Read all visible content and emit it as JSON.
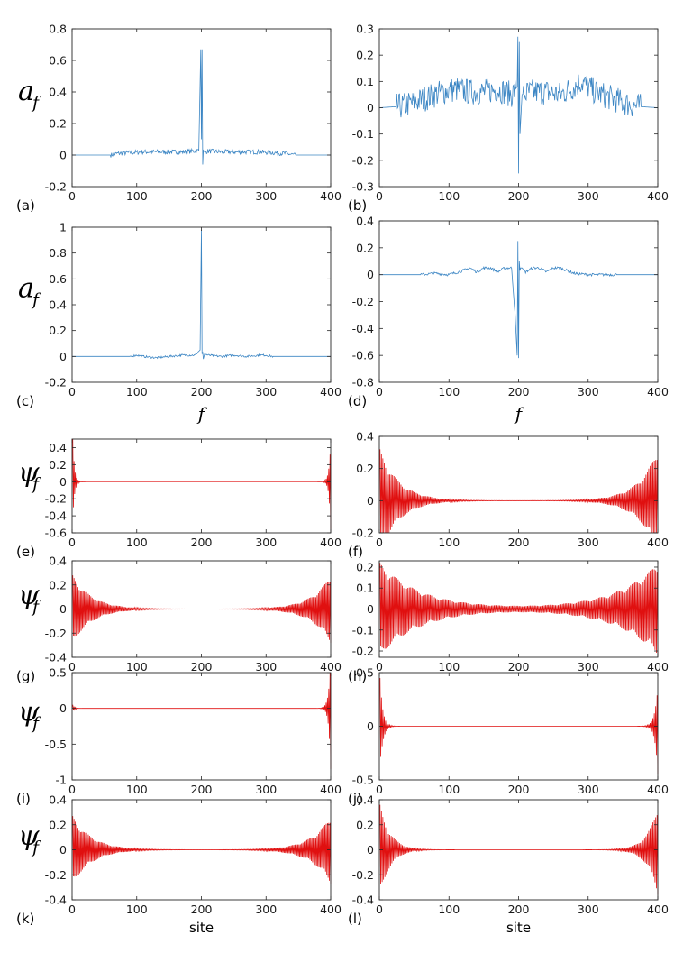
{
  "colors": {
    "blue": "#3c86c4",
    "red": "#e01010",
    "axis": "#262626"
  },
  "x_labels": {
    "f": "f",
    "site": "site"
  },
  "chart_data": [
    {
      "id": "a",
      "type": "line",
      "panel_label": "(a)",
      "ylabel_main": "a",
      "ylabel_sub": "f",
      "xlabel": "",
      "color": "#3c86c4",
      "xlim": [
        0,
        400
      ],
      "ylim": [
        -0.2,
        0.8
      ],
      "xticks": [
        0,
        100,
        200,
        300,
        400
      ],
      "xtick_labels": [
        "0",
        "100",
        "200",
        "300",
        "400"
      ],
      "yticks": [
        -0.2,
        0,
        0.2,
        0.4,
        0.6,
        0.8
      ],
      "ytick_labels": [
        "-0.2",
        "0",
        "0.2",
        "0.4",
        "0.6",
        "0.8"
      ],
      "series": [
        {
          "x": [
            0,
            60,
            70,
            90,
            110,
            130,
            150,
            170,
            190,
            196,
            199,
            200,
            201,
            202,
            203,
            205,
            210,
            230,
            250,
            270,
            290,
            310,
            330,
            345,
            400
          ],
          "y": [
            0,
            0,
            0.01,
            0.015,
            0.02,
            0.02,
            0.02,
            0.02,
            0.025,
            0.03,
            0.67,
            0.1,
            0.67,
            -0.06,
            0.03,
            0.02,
            0.025,
            0.02,
            0.02,
            0.02,
            0.02,
            0.015,
            0.01,
            0,
            0
          ],
          "noise": 0.015,
          "noise_range": [
            60,
            345
          ]
        }
      ]
    },
    {
      "id": "b",
      "type": "line",
      "panel_label": "(b)",
      "ylabel_main": "",
      "ylabel_sub": "",
      "xlabel": "",
      "color": "#3c86c4",
      "xlim": [
        0,
        400
      ],
      "ylim": [
        -0.3,
        0.3
      ],
      "xticks": [
        0,
        100,
        200,
        300,
        400
      ],
      "xtick_labels": [
        "0",
        "100",
        "200",
        "300",
        "400"
      ],
      "yticks": [
        -0.3,
        -0.2,
        -0.1,
        0,
        0.1,
        0.2,
        0.3
      ],
      "ytick_labels": [
        "-0.3",
        "-0.2",
        "-0.1",
        "0",
        "0.1",
        "0.2",
        "0.3"
      ],
      "series": [
        {
          "x": [
            0,
            30,
            50,
            70,
            90,
            110,
            130,
            150,
            170,
            190,
            198,
            199,
            200,
            201,
            202,
            205,
            220,
            240,
            260,
            280,
            290,
            310,
            330,
            350,
            370,
            400
          ],
          "y": [
            0,
            0.005,
            0.02,
            0.04,
            0.06,
            0.07,
            0.06,
            0.06,
            0.07,
            0.05,
            0.08,
            0.27,
            -0.25,
            0.25,
            -0.1,
            0.05,
            0.06,
            0.06,
            0.05,
            0.08,
            0.1,
            0.06,
            0.04,
            0.02,
            0.005,
            0
          ],
          "noise": 0.05,
          "noise_range": [
            25,
            375
          ]
        }
      ]
    },
    {
      "id": "c",
      "type": "line",
      "panel_label": "(c)",
      "ylabel_main": "a",
      "ylabel_sub": "f",
      "xlabel": "f",
      "color": "#3c86c4",
      "xlim": [
        0,
        400
      ],
      "ylim": [
        -0.2,
        1
      ],
      "xticks": [
        0,
        100,
        200,
        300,
        400
      ],
      "xtick_labels": [
        "0",
        "100",
        "200",
        "300",
        "400"
      ],
      "yticks": [
        -0.2,
        0,
        0.2,
        0.4,
        0.6,
        0.8,
        1
      ],
      "ytick_labels": [
        "-0.2",
        "0",
        "0.2",
        "0.4",
        "0.6",
        "0.8",
        "1"
      ],
      "series": [
        {
          "x": [
            0,
            90,
            100,
            110,
            130,
            150,
            170,
            190,
            198,
            200,
            201,
            202,
            203,
            205,
            210,
            230,
            250,
            270,
            290,
            300,
            310,
            400
          ],
          "y": [
            0,
            0,
            0.01,
            0,
            -0.01,
            0,
            0.01,
            0.01,
            0.05,
            0.98,
            0.02,
            0.03,
            -0.02,
            0.02,
            0.01,
            0,
            0.01,
            0,
            0.01,
            0.01,
            0,
            0
          ],
          "noise": 0.008,
          "noise_range": [
            90,
            310
          ]
        }
      ]
    },
    {
      "id": "d",
      "type": "line",
      "panel_label": "(d)",
      "ylabel_main": "",
      "ylabel_sub": "",
      "xlabel": "f",
      "color": "#3c86c4",
      "xlim": [
        0,
        400
      ],
      "ylim": [
        -0.8,
        0.4
      ],
      "xticks": [
        0,
        100,
        200,
        300,
        400
      ],
      "xtick_labels": [
        "0",
        "100",
        "200",
        "300",
        "400"
      ],
      "yticks": [
        -0.8,
        -0.6,
        -0.4,
        -0.2,
        0,
        0.2,
        0.4
      ],
      "ytick_labels": [
        "-0.8",
        "-0.6",
        "-0.4",
        "-0.2",
        "0",
        "0.2",
        "0.4"
      ],
      "series": [
        {
          "x": [
            0,
            60,
            80,
            100,
            120,
            130,
            140,
            150,
            160,
            170,
            180,
            190,
            195,
            198,
            199,
            200,
            201,
            202,
            203,
            205,
            210,
            220,
            230,
            240,
            250,
            260,
            270,
            280,
            300,
            330,
            400
          ],
          "y": [
            0,
            0,
            0.01,
            0,
            0.03,
            0.05,
            0.02,
            0.05,
            0.05,
            0.02,
            0.05,
            0.05,
            -0.3,
            -0.6,
            0.25,
            -0.62,
            0.1,
            0.03,
            0.05,
            0.05,
            0.02,
            0.05,
            0.05,
            0.02,
            0.05,
            0.05,
            0.03,
            0.01,
            0,
            0,
            0
          ],
          "noise": 0.01,
          "noise_range": [
            60,
            340
          ]
        }
      ]
    },
    {
      "id": "e",
      "type": "line",
      "panel_label": "(e)",
      "ylabel_main": "ψ",
      "ylabel_sub": "f",
      "xlabel": "",
      "color": "#e01010",
      "xlim": [
        0,
        400
      ],
      "ylim": [
        -0.6,
        0.5
      ],
      "xticks": [
        0,
        100,
        200,
        300,
        400
      ],
      "xtick_labels": [
        "0",
        "100",
        "200",
        "300",
        "400"
      ],
      "yticks": [
        -0.6,
        -0.4,
        -0.2,
        0,
        0.2,
        0.4
      ],
      "ytick_labels": [
        "-0.6",
        "-0.4",
        "-0.2",
        "0",
        "0.2",
        "0.4"
      ],
      "series": [
        {
          "decay": {
            "left_amp": 0.55,
            "right_amp": 0.58,
            "length": 2.5,
            "alternate": true
          }
        }
      ]
    },
    {
      "id": "f",
      "type": "line",
      "panel_label": "(f)",
      "ylabel_main": "",
      "ylabel_sub": "",
      "xlabel": "",
      "color": "#e01010",
      "xlim": [
        0,
        400
      ],
      "ylim": [
        -0.2,
        0.4
      ],
      "xticks": [
        0,
        100,
        200,
        300,
        400
      ],
      "xtick_labels": [
        "0",
        "100",
        "200",
        "300",
        "400"
      ],
      "yticks": [
        -0.2,
        0,
        0.2,
        0.4
      ],
      "ytick_labels": [
        "-0.2",
        "0",
        "0.2",
        "0.4"
      ],
      "series": [
        {
          "decay": {
            "left_amp": 0.32,
            "right_amp": 0.32,
            "length": 28,
            "alternate": true
          }
        }
      ]
    },
    {
      "id": "g",
      "type": "line",
      "panel_label": "(g)",
      "ylabel_main": "ψ",
      "ylabel_sub": "f",
      "xlabel": "",
      "color": "#e01010",
      "xlim": [
        0,
        400
      ],
      "ylim": [
        -0.4,
        0.4
      ],
      "xticks": [
        0,
        100,
        200,
        300,
        400
      ],
      "xtick_labels": [
        "0",
        "100",
        "200",
        "300",
        "400"
      ],
      "yticks": [
        -0.4,
        -0.2,
        0,
        0.2,
        0.4
      ],
      "ytick_labels": [
        "-0.4",
        "-0.2",
        "0",
        "0.2",
        "0.4"
      ],
      "series": [
        {
          "decay": {
            "left_amp": 0.28,
            "right_amp": 0.28,
            "length": 30,
            "alternate": true
          }
        }
      ]
    },
    {
      "id": "h",
      "type": "line",
      "panel_label": "(h)",
      "ylabel_main": "",
      "ylabel_sub": "",
      "xlabel": "",
      "color": "#e01010",
      "xlim": [
        0,
        400
      ],
      "ylim": [
        -0.23,
        0.23
      ],
      "xticks": [
        0,
        100,
        200,
        300,
        400
      ],
      "xtick_labels": [
        "0",
        "100",
        "200",
        "300",
        "400"
      ],
      "yticks": [
        -0.2,
        -0.1,
        0,
        0.1,
        0.2
      ],
      "ytick_labels": [
        "-0.2",
        "-0.1",
        "0",
        "0.1",
        "0.2"
      ],
      "series": [
        {
          "decay": {
            "left_amp": 0.22,
            "right_amp": 0.22,
            "length": 60,
            "alternate": true
          }
        }
      ]
    },
    {
      "id": "i",
      "type": "line",
      "panel_label": "(i)",
      "ylabel_main": "ψ",
      "ylabel_sub": "f",
      "xlabel": "",
      "color": "#e01010",
      "xlim": [
        0,
        400
      ],
      "ylim": [
        -1,
        0.5
      ],
      "xticks": [
        0,
        100,
        200,
        300,
        400
      ],
      "xtick_labels": [
        "0",
        "100",
        "200",
        "300",
        "400"
      ],
      "yticks": [
        -1,
        -0.5,
        0,
        0.5
      ],
      "ytick_labels": [
        "-1",
        "-0.5",
        "0",
        "0.5"
      ],
      "series": [
        {
          "decay": {
            "left_amp": 0.05,
            "right_amp": 0.85,
            "length": 3,
            "alternate": true
          }
        }
      ]
    },
    {
      "id": "j",
      "type": "line",
      "panel_label": "(j)",
      "ylabel_main": "",
      "ylabel_sub": "",
      "xlabel": "",
      "color": "#e01010",
      "xlim": [
        0,
        400
      ],
      "ylim": [
        -0.5,
        0.5
      ],
      "xticks": [
        0,
        100,
        200,
        300,
        400
      ],
      "xtick_labels": [
        "0",
        "100",
        "200",
        "300",
        "400"
      ],
      "yticks": [
        -0.5,
        0,
        0.5
      ],
      "ytick_labels": [
        "-0.5",
        "0",
        "0.5"
      ],
      "series": [
        {
          "decay": {
            "left_amp": 0.45,
            "right_amp": 0.45,
            "length": 4,
            "alternate": true
          }
        }
      ]
    },
    {
      "id": "k",
      "type": "line",
      "panel_label": "(k)",
      "ylabel_main": "ψ",
      "ylabel_sub": "f",
      "xlabel": "site",
      "color": "#e01010",
      "xlim": [
        0,
        400
      ],
      "ylim": [
        -0.4,
        0.4
      ],
      "xticks": [
        0,
        100,
        200,
        300,
        400
      ],
      "xtick_labels": [
        "0",
        "100",
        "200",
        "300",
        "400"
      ],
      "yticks": [
        -0.4,
        -0.2,
        0,
        0.2,
        0.4
      ],
      "ytick_labels": [
        "-0.4",
        "-0.2",
        "0",
        "0.2",
        "0.4"
      ],
      "series": [
        {
          "decay": {
            "left_amp": 0.27,
            "right_amp": 0.27,
            "length": 30,
            "alternate": true
          }
        }
      ]
    },
    {
      "id": "l",
      "type": "line",
      "panel_label": "(l)",
      "ylabel_main": "",
      "ylabel_sub": "",
      "xlabel": "site",
      "color": "#e01010",
      "xlim": [
        0,
        400
      ],
      "ylim": [
        -0.4,
        0.4
      ],
      "xticks": [
        0,
        100,
        200,
        300,
        400
      ],
      "xtick_labels": [
        "0",
        "100",
        "200",
        "300",
        "400"
      ],
      "yticks": [
        -0.4,
        -0.2,
        0,
        0.2,
        0.4
      ],
      "ytick_labels": [
        "-0.4",
        "-0.2",
        "0",
        "0.2",
        "0.4"
      ],
      "series": [
        {
          "decay": {
            "left_amp": 0.36,
            "right_amp": 0.36,
            "length": 15,
            "alternate": true
          }
        }
      ]
    }
  ]
}
